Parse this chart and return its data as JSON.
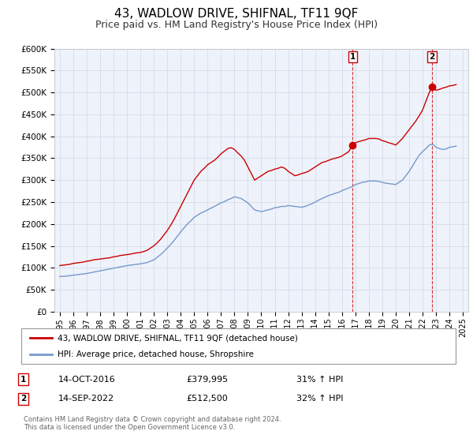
{
  "title": "43, WADLOW DRIVE, SHIFNAL, TF11 9QF",
  "subtitle": "Price paid vs. HM Land Registry's House Price Index (HPI)",
  "title_fontsize": 11,
  "subtitle_fontsize": 9,
  "background_color": "#ffffff",
  "plot_bg_color": "#eef2fa",
  "grid_color": "#d8dce8",
  "red_line_color": "#cc0000",
  "blue_line_color": "#7799cc",
  "ylim": [
    0,
    600000
  ],
  "yticks": [
    0,
    50000,
    100000,
    150000,
    200000,
    250000,
    300000,
    350000,
    400000,
    450000,
    500000,
    550000,
    600000
  ],
  "ytick_labels": [
    "£0",
    "£50K",
    "£100K",
    "£150K",
    "£200K",
    "£250K",
    "£300K",
    "£350K",
    "£400K",
    "£450K",
    "£500K",
    "£550K",
    "£600K"
  ],
  "xlim_start": 1994.6,
  "xlim_end": 2025.4,
  "xtick_years": [
    1995,
    1996,
    1997,
    1998,
    1999,
    2000,
    2001,
    2002,
    2003,
    2004,
    2005,
    2006,
    2007,
    2008,
    2009,
    2010,
    2011,
    2012,
    2013,
    2014,
    2015,
    2016,
    2017,
    2018,
    2019,
    2020,
    2021,
    2022,
    2023,
    2024,
    2025
  ],
  "legend_label_red": "43, WADLOW DRIVE, SHIFNAL, TF11 9QF (detached house)",
  "legend_label_blue": "HPI: Average price, detached house, Shropshire",
  "sale1_date": "14-OCT-2016",
  "sale1_price": "£379,995",
  "sale1_hpi": "31% ↑ HPI",
  "sale1_year": 2016.79,
  "sale1_value": 379995,
  "sale2_date": "14-SEP-2022",
  "sale2_price": "£512,500",
  "sale2_hpi": "32% ↑ HPI",
  "sale2_year": 2022.71,
  "sale2_value": 512500,
  "footnote_line1": "Contains HM Land Registry data © Crown copyright and database right 2024.",
  "footnote_line2": "This data is licensed under the Open Government Licence v3.0.",
  "red_line_data": {
    "years": [
      1995.0,
      1995.25,
      1995.5,
      1995.75,
      1996.0,
      1996.25,
      1996.5,
      1996.75,
      1997.0,
      1997.25,
      1997.5,
      1997.75,
      1998.0,
      1998.25,
      1998.5,
      1998.75,
      1999.0,
      1999.25,
      1999.5,
      1999.75,
      2000.0,
      2000.25,
      2000.5,
      2000.75,
      2001.0,
      2001.25,
      2001.5,
      2001.75,
      2002.0,
      2002.25,
      2002.5,
      2002.75,
      2003.0,
      2003.25,
      2003.5,
      2003.75,
      2004.0,
      2004.25,
      2004.5,
      2004.75,
      2005.0,
      2005.25,
      2005.5,
      2005.75,
      2006.0,
      2006.25,
      2006.5,
      2006.75,
      2007.0,
      2007.25,
      2007.5,
      2007.75,
      2008.0,
      2008.25,
      2008.5,
      2008.75,
      2009.0,
      2009.25,
      2009.5,
      2009.75,
      2010.0,
      2010.25,
      2010.5,
      2010.75,
      2011.0,
      2011.25,
      2011.5,
      2011.75,
      2012.0,
      2012.25,
      2012.5,
      2012.75,
      2013.0,
      2013.25,
      2013.5,
      2013.75,
      2014.0,
      2014.25,
      2014.5,
      2014.75,
      2015.0,
      2015.25,
      2015.5,
      2015.75,
      2016.0,
      2016.25,
      2016.5,
      2016.79,
      2017.0,
      2017.25,
      2017.5,
      2017.75,
      2018.0,
      2018.25,
      2018.5,
      2018.75,
      2019.0,
      2019.25,
      2019.5,
      2019.75,
      2020.0,
      2020.25,
      2020.5,
      2020.75,
      2021.0,
      2021.25,
      2021.5,
      2021.75,
      2022.0,
      2022.25,
      2022.5,
      2022.71,
      2023.0,
      2023.25,
      2023.5,
      2023.75,
      2024.0,
      2024.25,
      2024.5
    ],
    "values": [
      105000,
      106000,
      107000,
      108000,
      110000,
      111000,
      112000,
      113000,
      115000,
      116000,
      118000,
      119000,
      120000,
      121000,
      122000,
      123000,
      125000,
      126000,
      128000,
      129000,
      130000,
      131000,
      133000,
      134000,
      135000,
      137000,
      140000,
      145000,
      150000,
      157000,
      165000,
      175000,
      185000,
      197000,
      210000,
      225000,
      240000,
      255000,
      270000,
      285000,
      300000,
      310000,
      320000,
      327000,
      335000,
      340000,
      345000,
      352000,
      360000,
      366000,
      372000,
      374000,
      370000,
      362000,
      355000,
      345000,
      330000,
      315000,
      300000,
      305000,
      310000,
      315000,
      320000,
      322000,
      325000,
      327000,
      330000,
      327000,
      320000,
      315000,
      310000,
      312000,
      315000,
      317000,
      320000,
      325000,
      330000,
      335000,
      340000,
      342000,
      345000,
      348000,
      350000,
      352000,
      355000,
      360000,
      365000,
      379995,
      385000,
      388000,
      390000,
      392000,
      395000,
      395000,
      395000,
      394000,
      390000,
      388000,
      385000,
      383000,
      380000,
      387000,
      395000,
      405000,
      415000,
      425000,
      435000,
      447000,
      460000,
      480000,
      500000,
      512500,
      505000,
      507000,
      510000,
      512000,
      515000,
      516000,
      518000
    ]
  },
  "blue_line_data": {
    "years": [
      1995.0,
      1995.25,
      1995.5,
      1995.75,
      1996.0,
      1996.25,
      1996.5,
      1996.75,
      1997.0,
      1997.25,
      1997.5,
      1997.75,
      1998.0,
      1998.25,
      1998.5,
      1998.75,
      1999.0,
      1999.25,
      1999.5,
      1999.75,
      2000.0,
      2000.25,
      2000.5,
      2000.75,
      2001.0,
      2001.25,
      2001.5,
      2001.75,
      2002.0,
      2002.25,
      2002.5,
      2002.75,
      2003.0,
      2003.25,
      2003.5,
      2003.75,
      2004.0,
      2004.25,
      2004.5,
      2004.75,
      2005.0,
      2005.25,
      2005.5,
      2005.75,
      2006.0,
      2006.25,
      2006.5,
      2006.75,
      2007.0,
      2007.25,
      2007.5,
      2007.75,
      2008.0,
      2008.25,
      2008.5,
      2008.75,
      2009.0,
      2009.25,
      2009.5,
      2009.75,
      2010.0,
      2010.25,
      2010.5,
      2010.75,
      2011.0,
      2011.25,
      2011.5,
      2011.75,
      2012.0,
      2012.25,
      2012.5,
      2012.75,
      2013.0,
      2013.25,
      2013.5,
      2013.75,
      2014.0,
      2014.25,
      2014.5,
      2014.75,
      2015.0,
      2015.25,
      2015.5,
      2015.75,
      2016.0,
      2016.25,
      2016.5,
      2016.75,
      2017.0,
      2017.25,
      2017.5,
      2017.75,
      2018.0,
      2018.25,
      2018.5,
      2018.75,
      2019.0,
      2019.25,
      2019.5,
      2019.75,
      2020.0,
      2020.25,
      2020.5,
      2020.75,
      2021.0,
      2021.25,
      2021.5,
      2021.75,
      2022.0,
      2022.25,
      2022.5,
      2022.75,
      2023.0,
      2023.25,
      2023.5,
      2023.75,
      2024.0,
      2024.25,
      2024.5
    ],
    "values": [
      80000,
      80500,
      81000,
      82000,
      83000,
      84000,
      85000,
      86000,
      87000,
      88500,
      90000,
      91500,
      93000,
      94500,
      96000,
      97500,
      99000,
      100500,
      102000,
      103500,
      105000,
      106000,
      107000,
      108000,
      109000,
      110500,
      112000,
      115000,
      118000,
      124000,
      130000,
      137000,
      145000,
      153000,
      162000,
      172000,
      182000,
      191000,
      200000,
      207000,
      215000,
      220000,
      225000,
      228000,
      232000,
      236000,
      240000,
      244000,
      248000,
      251000,
      255000,
      258000,
      262000,
      260000,
      258000,
      253000,
      248000,
      240000,
      232000,
      230000,
      228000,
      230000,
      232000,
      234000,
      237000,
      238000,
      240000,
      240000,
      242000,
      241000,
      240000,
      239000,
      238000,
      240000,
      243000,
      246000,
      250000,
      254000,
      258000,
      261000,
      265000,
      267000,
      270000,
      272000,
      276000,
      279000,
      282000,
      285000,
      290000,
      292000,
      295000,
      296000,
      298000,
      298000,
      298000,
      297000,
      295000,
      293000,
      292000,
      291000,
      290000,
      295000,
      300000,
      310000,
      320000,
      332000,
      345000,
      357000,
      365000,
      372000,
      380000,
      382000,
      375000,
      372000,
      370000,
      371000,
      375000,
      376000,
      378000
    ]
  }
}
